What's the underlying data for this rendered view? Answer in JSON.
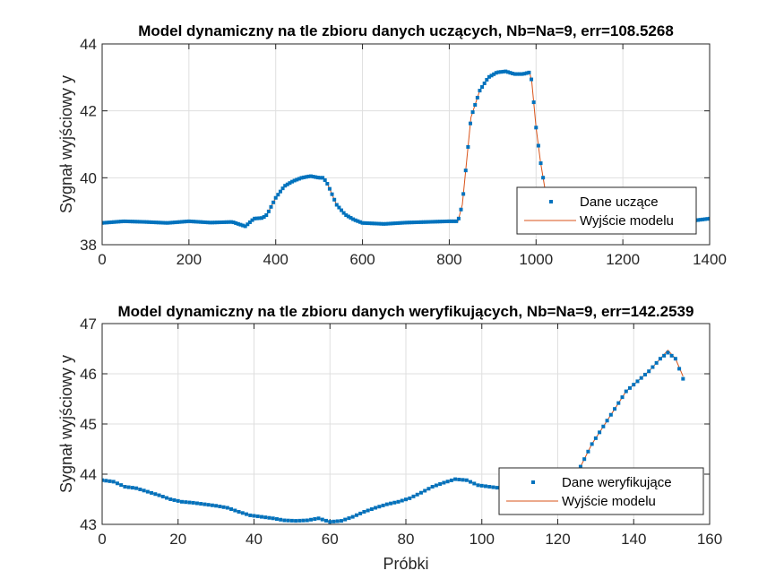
{
  "chart_data": [
    {
      "type": "line",
      "title": "Model dynamiczny na tle zbioru danych uczących, Nb=Na=9, err=108.5268",
      "xlabel": "",
      "ylabel": "Sygnał wyjściowy y",
      "xlim": [
        0,
        1400
      ],
      "ylim": [
        38,
        44
      ],
      "xticks": [
        "0",
        "200",
        "400",
        "600",
        "800",
        "1000",
        "1200",
        "1400"
      ],
      "yticks": [
        "38",
        "40",
        "42",
        "44"
      ],
      "grid": true,
      "legend": {
        "placement": "lower-right",
        "entries": [
          "Dane uczące",
          "Wyjście modelu"
        ]
      },
      "colors": {
        "data": "#0072BD",
        "model": "#D95319"
      },
      "series": [
        {
          "name": "Dane uczące",
          "marker": "square",
          "points": [
            [
              0,
              38.65
            ],
            [
              50,
              38.7
            ],
            [
              100,
              38.68
            ],
            [
              150,
              38.65
            ],
            [
              200,
              38.7
            ],
            [
              250,
              38.66
            ],
            [
              300,
              38.68
            ],
            [
              330,
              38.55
            ],
            [
              350,
              38.78
            ],
            [
              370,
              38.8
            ],
            [
              380,
              38.9
            ],
            [
              400,
              39.4
            ],
            [
              420,
              39.75
            ],
            [
              440,
              39.9
            ],
            [
              460,
              40.0
            ],
            [
              480,
              40.05
            ],
            [
              500,
              40.0
            ],
            [
              510,
              40.0
            ],
            [
              520,
              39.8
            ],
            [
              540,
              39.2
            ],
            [
              560,
              38.9
            ],
            [
              580,
              38.75
            ],
            [
              600,
              38.65
            ],
            [
              650,
              38.62
            ],
            [
              700,
              38.66
            ],
            [
              750,
              38.68
            ],
            [
              800,
              38.7
            ],
            [
              820,
              38.7
            ],
            [
              830,
              39.2
            ],
            [
              840,
              40.5
            ],
            [
              850,
              41.8
            ],
            [
              870,
              42.6
            ],
            [
              890,
              43.0
            ],
            [
              910,
              43.15
            ],
            [
              930,
              43.18
            ],
            [
              950,
              43.1
            ],
            [
              970,
              43.1
            ],
            [
              985,
              43.15
            ],
            [
              990,
              42.9
            ],
            [
              1000,
              41.5
            ],
            [
              1010,
              40.5
            ],
            [
              1020,
              39.7
            ],
            [
              1030,
              39.2
            ],
            [
              1040,
              38.85
            ],
            [
              1060,
              38.7
            ],
            [
              1080,
              38.6
            ],
            [
              1100,
              38.6
            ],
            [
              1200,
              38.65
            ],
            [
              1300,
              38.65
            ],
            [
              1350,
              38.7
            ],
            [
              1400,
              38.78
            ]
          ]
        },
        {
          "name": "Wyjście modelu",
          "points": [
            [
              0,
              38.65
            ],
            [
              50,
              38.7
            ],
            [
              100,
              38.68
            ],
            [
              150,
              38.65
            ],
            [
              200,
              38.7
            ],
            [
              250,
              38.66
            ],
            [
              300,
              38.68
            ],
            [
              330,
              38.55
            ],
            [
              350,
              38.78
            ],
            [
              370,
              38.8
            ],
            [
              380,
              38.9
            ],
            [
              400,
              39.4
            ],
            [
              420,
              39.75
            ],
            [
              440,
              39.9
            ],
            [
              460,
              40.0
            ],
            [
              480,
              40.05
            ],
            [
              500,
              40.0
            ],
            [
              510,
              40.0
            ],
            [
              520,
              39.8
            ],
            [
              540,
              39.2
            ],
            [
              560,
              38.9
            ],
            [
              580,
              38.75
            ],
            [
              600,
              38.65
            ],
            [
              650,
              38.62
            ],
            [
              700,
              38.66
            ],
            [
              750,
              38.68
            ],
            [
              800,
              38.7
            ],
            [
              820,
              38.7
            ],
            [
              830,
              39.2
            ],
            [
              840,
              40.5
            ],
            [
              850,
              41.8
            ],
            [
              870,
              42.6
            ],
            [
              890,
              43.0
            ],
            [
              910,
              43.15
            ],
            [
              930,
              43.18
            ],
            [
              950,
              43.1
            ],
            [
              970,
              43.1
            ],
            [
              985,
              43.15
            ],
            [
              990,
              42.9
            ],
            [
              1000,
              41.5
            ],
            [
              1010,
              40.5
            ],
            [
              1020,
              39.7
            ],
            [
              1030,
              39.2
            ],
            [
              1040,
              38.85
            ],
            [
              1060,
              38.7
            ],
            [
              1080,
              38.6
            ],
            [
              1100,
              38.6
            ],
            [
              1200,
              38.65
            ],
            [
              1300,
              38.65
            ],
            [
              1350,
              38.7
            ],
            [
              1400,
              38.78
            ]
          ]
        }
      ]
    },
    {
      "type": "line",
      "title": "Model dynamiczny na tle zbioru danych weryfikujących, Nb=Na=9, err=142.2539",
      "xlabel": "Próbki",
      "ylabel": "Sygnał wyjściowy y",
      "xlim": [
        0,
        160
      ],
      "ylim": [
        43,
        47
      ],
      "xticks": [
        "0",
        "20",
        "40",
        "60",
        "80",
        "100",
        "120",
        "140",
        "160"
      ],
      "yticks": [
        "43",
        "44",
        "45",
        "46",
        "47"
      ],
      "grid": true,
      "legend": {
        "placement": "lower-right",
        "entries": [
          "Dane weryfikujące",
          "Wyjście modelu"
        ]
      },
      "colors": {
        "data": "#0072BD",
        "model": "#D95319"
      },
      "series": [
        {
          "name": "Dane weryfikujące",
          "marker": "square",
          "points": [
            [
              0,
              43.88
            ],
            [
              3,
              43.85
            ],
            [
              6,
              43.75
            ],
            [
              9,
              43.72
            ],
            [
              12,
              43.65
            ],
            [
              15,
              43.58
            ],
            [
              18,
              43.5
            ],
            [
              21,
              43.45
            ],
            [
              24,
              43.43
            ],
            [
              27,
              43.4
            ],
            [
              30,
              43.37
            ],
            [
              33,
              43.33
            ],
            [
              36,
              43.25
            ],
            [
              39,
              43.18
            ],
            [
              42,
              43.15
            ],
            [
              45,
              43.12
            ],
            [
              48,
              43.08
            ],
            [
              51,
              43.07
            ],
            [
              54,
              43.08
            ],
            [
              57,
              43.12
            ],
            [
              60,
              43.05
            ],
            [
              63,
              43.07
            ],
            [
              66,
              43.15
            ],
            [
              69,
              43.25
            ],
            [
              72,
              43.33
            ],
            [
              75,
              43.4
            ],
            [
              78,
              43.45
            ],
            [
              81,
              43.52
            ],
            [
              84,
              43.63
            ],
            [
              87,
              43.75
            ],
            [
              90,
              43.83
            ],
            [
              93,
              43.9
            ],
            [
              96,
              43.88
            ],
            [
              99,
              43.78
            ],
            [
              102,
              43.75
            ],
            [
              105,
              43.72
            ],
            [
              108,
              43.7
            ],
            [
              111,
              43.66
            ],
            [
              114,
              43.6
            ],
            [
              117,
              43.57
            ],
            [
              120,
              43.6
            ],
            [
              123,
              43.73
            ],
            [
              124,
              43.87
            ],
            [
              126,
              44.15
            ],
            [
              129,
              44.6
            ],
            [
              132,
              44.95
            ],
            [
              135,
              45.3
            ],
            [
              138,
              45.65
            ],
            [
              141,
              45.85
            ],
            [
              144,
              46.05
            ],
            [
              147,
              46.3
            ],
            [
              149,
              46.42
            ],
            [
              151,
              46.3
            ],
            [
              153,
              45.9
            ]
          ]
        },
        {
          "name": "Wyjście modelu",
          "points": [
            [
              0,
              43.88
            ],
            [
              3,
              43.85
            ],
            [
              6,
              43.75
            ],
            [
              9,
              43.72
            ],
            [
              12,
              43.65
            ],
            [
              15,
              43.58
            ],
            [
              18,
              43.5
            ],
            [
              21,
              43.45
            ],
            [
              24,
              43.43
            ],
            [
              27,
              43.4
            ],
            [
              30,
              43.37
            ],
            [
              33,
              43.33
            ],
            [
              36,
              43.25
            ],
            [
              39,
              43.18
            ],
            [
              42,
              43.15
            ],
            [
              45,
              43.12
            ],
            [
              48,
              43.08
            ],
            [
              51,
              43.07
            ],
            [
              54,
              43.08
            ],
            [
              57,
              43.12
            ],
            [
              60,
              43.05
            ],
            [
              63,
              43.07
            ],
            [
              66,
              43.15
            ],
            [
              69,
              43.25
            ],
            [
              72,
              43.33
            ],
            [
              75,
              43.4
            ],
            [
              78,
              43.45
            ],
            [
              81,
              43.52
            ],
            [
              84,
              43.63
            ],
            [
              87,
              43.75
            ],
            [
              90,
              43.83
            ],
            [
              93,
              43.9
            ],
            [
              96,
              43.88
            ],
            [
              99,
              43.78
            ],
            [
              102,
              43.75
            ],
            [
              105,
              43.72
            ],
            [
              108,
              43.7
            ],
            [
              111,
              43.66
            ],
            [
              114,
              43.6
            ],
            [
              117,
              43.57
            ],
            [
              120,
              43.6
            ],
            [
              123,
              43.73
            ],
            [
              124,
              43.87
            ],
            [
              126,
              44.15
            ],
            [
              129,
              44.6
            ],
            [
              132,
              44.95
            ],
            [
              135,
              45.3
            ],
            [
              138,
              45.65
            ],
            [
              141,
              45.85
            ],
            [
              144,
              46.05
            ],
            [
              147,
              46.3
            ],
            [
              149,
              46.47
            ],
            [
              151,
              46.3
            ],
            [
              153,
              45.95
            ]
          ]
        }
      ]
    }
  ]
}
